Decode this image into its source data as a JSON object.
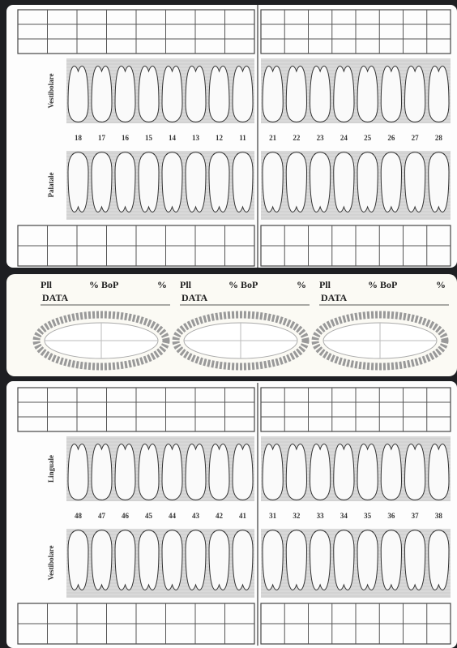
{
  "upper": {
    "labels": [
      "Vestibolare",
      "Palatale"
    ],
    "teeth_right": [
      18,
      17,
      16,
      15,
      14,
      13,
      12,
      11
    ],
    "teeth_left": [
      21,
      22,
      23,
      24,
      25,
      26,
      27,
      28
    ]
  },
  "index_panels": [
    {
      "pli": "Pll",
      "pli_unit": "% BoP",
      "bop_unit": "%",
      "date": "DATA"
    },
    {
      "pli": "Pll",
      "pli_unit": "% BoP",
      "bop_unit": "%",
      "date": "DATA"
    },
    {
      "pli": "Pll",
      "pli_unit": "% BoP",
      "bop_unit": "%",
      "date": "DATA"
    }
  ],
  "lower": {
    "labels": [
      "Linguale",
      "Vestibolare"
    ],
    "teeth_right": [
      48,
      47,
      46,
      45,
      44,
      43,
      42,
      41
    ],
    "teeth_left": [
      31,
      32,
      33,
      34,
      35,
      36,
      37,
      38
    ]
  }
}
